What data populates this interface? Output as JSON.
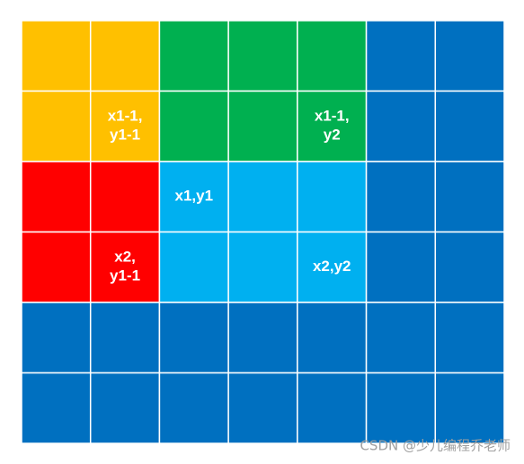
{
  "cells": [
    {
      "lines": [
        "x1-1,",
        "y1-1"
      ]
    },
    {
      "lines": [
        "x1-1,",
        "y2"
      ]
    },
    {
      "lines": [
        "x1,y1"
      ]
    },
    {
      "lines": [
        "x2,",
        "y1-1"
      ]
    },
    {
      "lines": [
        "x2,y2"
      ]
    }
  ],
  "watermark": "CSDN @少儿编程乔老师"
}
